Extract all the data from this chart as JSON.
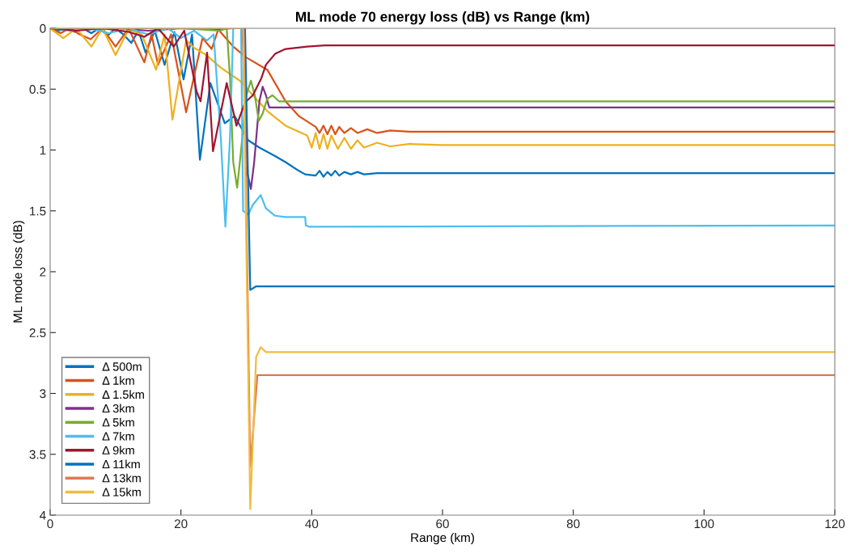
{
  "chart_data": {
    "type": "line",
    "title": "ML mode 70 energy loss (dB) vs Range (km)",
    "xlabel": "Range (km)",
    "ylabel": "ML mode loss (dB)",
    "xlim": [
      0,
      120
    ],
    "xticks": [
      0,
      20,
      40,
      60,
      80,
      100,
      120
    ],
    "ylim": [
      4,
      0
    ],
    "yticks": [
      0,
      0.5,
      1,
      1.5,
      2,
      2.5,
      3,
      3.5,
      4
    ],
    "grid": false,
    "legend": "bottom left",
    "line_style": "solid",
    "marker": "none",
    "series": [
      {
        "name": "Δ 500m",
        "color": "#0072bd",
        "x": [
          0,
          1.2,
          2.5,
          3.8,
          5,
          6.3,
          7.5,
          8.8,
          10,
          11.2,
          12.4,
          13.5,
          14.6,
          16,
          17.5,
          19,
          20.4,
          21.7,
          22.9,
          24.5,
          26.7,
          28.2,
          30.3,
          32,
          34.4,
          36,
          38,
          39,
          40.6,
          41.2,
          41.8,
          42.4,
          43,
          43.6,
          44.2,
          45,
          46,
          47,
          48,
          50,
          55,
          120
        ],
        "values": [
          0,
          0.02,
          0,
          0.03,
          0,
          0.04,
          0,
          0.06,
          0,
          0.05,
          0.12,
          0.02,
          0.2,
          0.02,
          0.3,
          0.03,
          0.42,
          0.05,
          1.08,
          0.45,
          0.78,
          0.72,
          0.92,
          0.98,
          1.05,
          1.1,
          1.17,
          1.2,
          1.21,
          1.17,
          1.22,
          1.18,
          1.21,
          1.17,
          1.21,
          1.18,
          1.2,
          1.18,
          1.2,
          1.19,
          1.19,
          1.19
        ]
      },
      {
        "name": "Δ 1km",
        "color": "#d95319",
        "x": [
          0,
          1.6,
          3,
          4.5,
          6.2,
          8,
          10,
          12,
          14.4,
          15.5,
          16.5,
          18.5,
          20.8,
          23.3,
          24.7,
          25.7,
          28,
          30,
          33.2,
          36,
          38,
          40.6,
          41.2,
          41.8,
          42.4,
          43,
          43.6,
          44.2,
          45,
          46,
          47,
          48.5,
          50,
          52,
          55,
          60,
          120
        ],
        "values": [
          0,
          0.04,
          0,
          0.05,
          0.09,
          0,
          0.15,
          0,
          0.28,
          0.05,
          0.3,
          0.05,
          0.69,
          0.08,
          0.17,
          0.01,
          0.15,
          0.24,
          0.34,
          0.6,
          0.72,
          0.81,
          0.86,
          0.8,
          0.87,
          0.8,
          0.87,
          0.81,
          0.86,
          0.82,
          0.86,
          0.83,
          0.86,
          0.84,
          0.85,
          0.85,
          0.85
        ]
      },
      {
        "name": "Δ 1.5km",
        "color": "#edb120",
        "x": [
          0,
          2,
          4,
          6.3,
          8,
          10,
          12,
          14,
          16.2,
          17.5,
          18.7,
          20.8,
          22,
          23.9,
          26,
          29,
          31,
          33.2,
          36,
          39.3,
          40,
          40.6,
          41.2,
          41.8,
          42.4,
          43,
          44,
          45,
          46,
          47,
          48,
          50,
          52,
          55,
          60,
          120
        ],
        "values": [
          0,
          0.08,
          0,
          0.15,
          0,
          0.22,
          0.01,
          0.05,
          0.34,
          0.05,
          0.75,
          0.1,
          0.16,
          0.22,
          0.32,
          0.43,
          0.55,
          0.68,
          0.8,
          0.88,
          0.98,
          0.86,
          0.99,
          0.87,
          0.99,
          0.88,
          0.99,
          0.9,
          0.99,
          0.92,
          0.98,
          0.94,
          0.97,
          0.95,
          0.96,
          0.96
        ]
      },
      {
        "name": "Δ 3km",
        "color": "#7e2f8e",
        "x": [
          0,
          5,
          10,
          15,
          20,
          25,
          28,
          29.4,
          29.7,
          30.2,
          30.7,
          31.2,
          32,
          32.5,
          33,
          33.5,
          34.5,
          120
        ],
        "values": [
          0,
          0.01,
          0,
          0.02,
          0,
          0.01,
          0,
          0,
          0.5,
          1.2,
          1.32,
          1.1,
          0.6,
          0.48,
          0.55,
          0.65,
          0.65,
          0.65
        ]
      },
      {
        "name": "Δ 5km",
        "color": "#77ac30",
        "x": [
          0,
          10,
          20,
          26,
          27,
          27.5,
          28,
          28.6,
          29.2,
          30,
          30.7,
          31.3,
          31.9,
          32.5,
          33.2,
          34,
          35,
          120
        ],
        "values": [
          0,
          0,
          0,
          0.02,
          0,
          0.4,
          1.1,
          1.31,
          1.0,
          0.55,
          0.43,
          0.55,
          0.76,
          0.7,
          0.58,
          0.55,
          0.6,
          0.6
        ]
      },
      {
        "name": "Δ 7km",
        "color": "#4dbeee",
        "x": [
          0,
          3,
          6,
          9,
          12,
          15,
          18,
          20,
          22,
          24,
          25,
          26.1,
          26.8,
          27.5,
          28,
          29.2,
          29.5,
          30.3,
          31,
          32.2,
          33,
          34.4,
          36,
          39,
          39.1,
          39.6,
          120
        ],
        "values": [
          0,
          0.02,
          0,
          0.04,
          0,
          0.05,
          0,
          0.08,
          0.02,
          0.1,
          0.05,
          0.9,
          1.63,
          0.9,
          0,
          0,
          1.5,
          1.53,
          1.45,
          1.37,
          1.48,
          1.54,
          1.55,
          1.55,
          1.62,
          1.63,
          1.62
        ]
      },
      {
        "name": "Δ 9km",
        "color": "#a2142f",
        "x": [
          0,
          4,
          8,
          12,
          14.4,
          16.5,
          18.9,
          20.5,
          22.4,
          23,
          24,
          24.9,
          27,
          28.5,
          29.8,
          31,
          32.3,
          33,
          34.4,
          36,
          39.3,
          42,
          120
        ],
        "values": [
          0,
          0.02,
          0,
          0.03,
          0.07,
          0,
          0.15,
          0.02,
          0.52,
          0.6,
          0.2,
          1.01,
          0.45,
          0.8,
          0.61,
          0.55,
          0.41,
          0.3,
          0.21,
          0.17,
          0.15,
          0.14,
          0.14
        ]
      },
      {
        "name": "Δ 11km",
        "color": "#0072bd",
        "x": [
          0,
          29.8,
          30.6,
          31.5,
          120
        ],
        "values": [
          0,
          0,
          2.15,
          2.12,
          2.12
        ]
      },
      {
        "name": "Δ 13km",
        "color": "#e07850",
        "x": [
          0,
          29.6,
          30.6,
          31.7,
          120
        ],
        "values": [
          0,
          0,
          3.6,
          2.85,
          2.85
        ]
      },
      {
        "name": "Δ 15km",
        "color": "#f0bc40",
        "x": [
          0,
          29.5,
          30.6,
          31.5,
          32.2,
          33,
          120
        ],
        "values": [
          0,
          0,
          3.95,
          2.7,
          2.62,
          2.66,
          2.66
        ]
      }
    ]
  }
}
